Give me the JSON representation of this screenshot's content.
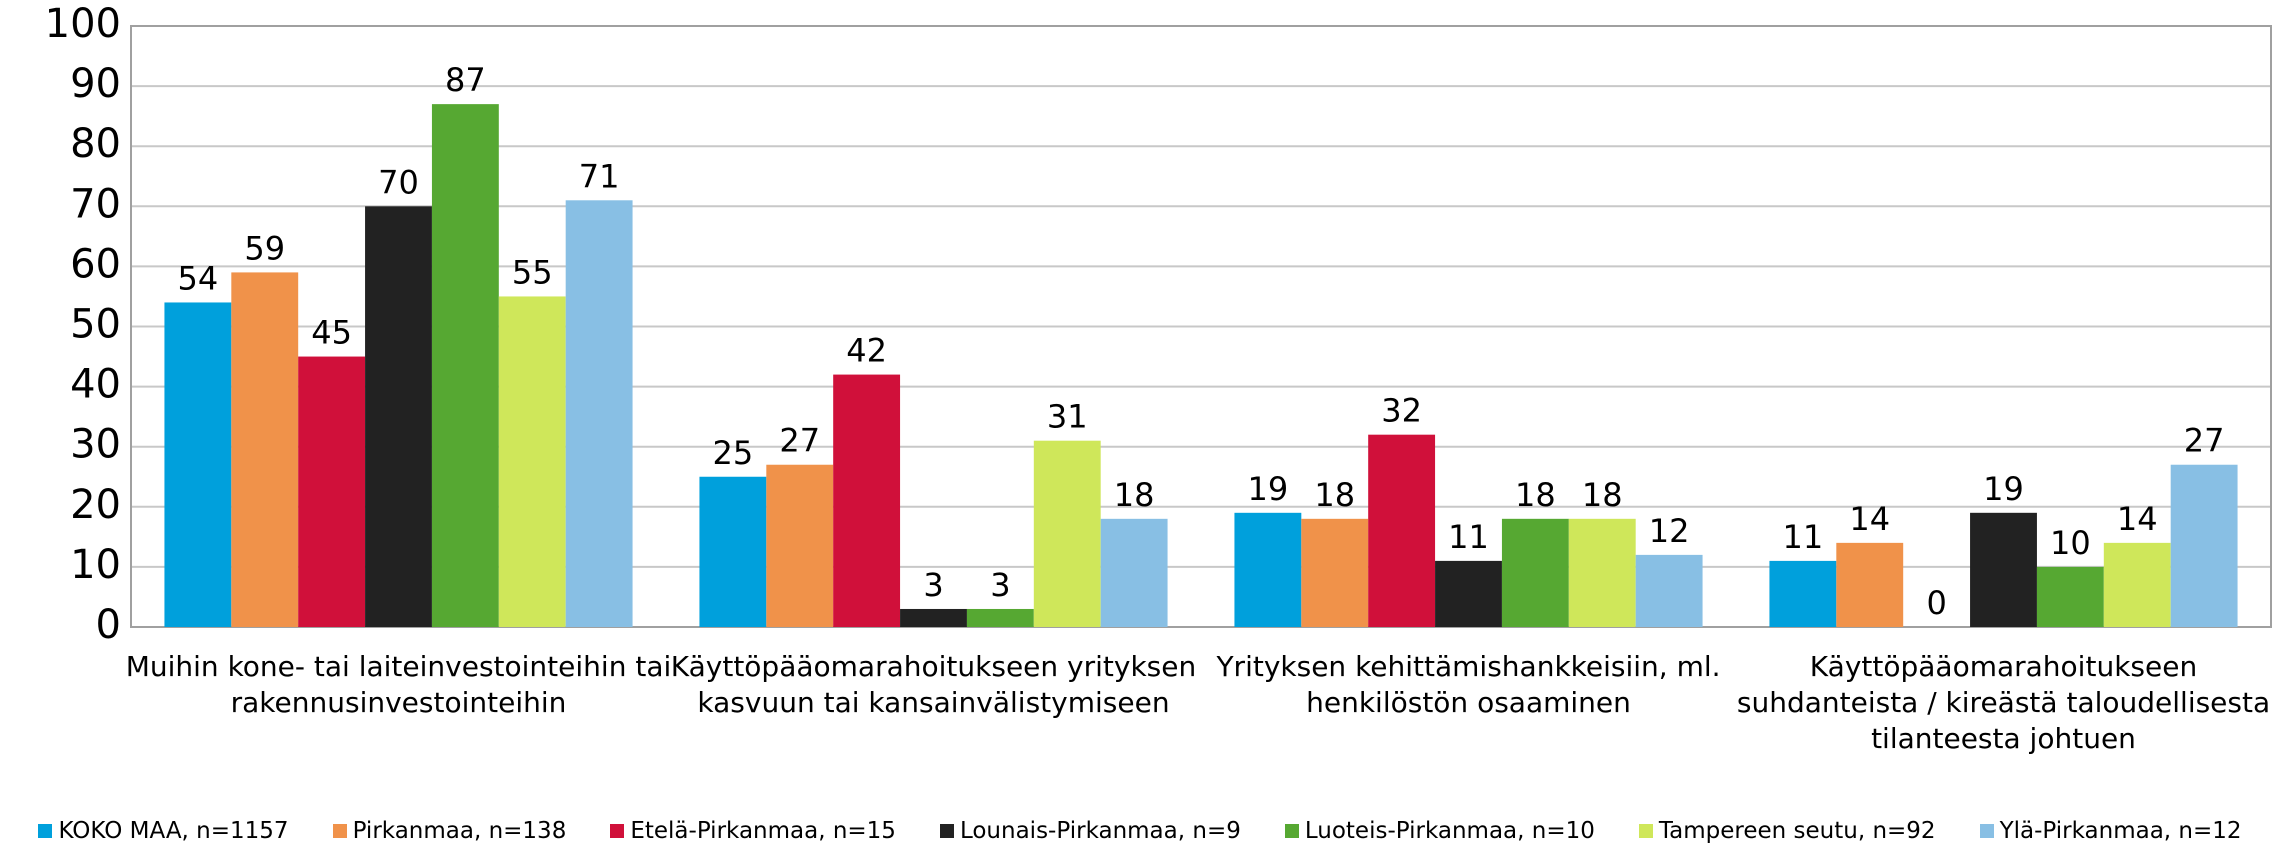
{
  "chart_data": {
    "type": "bar",
    "categories": [
      "Muihin kone- tai laiteinvestointeihin tai rakennusinvestointeihin",
      "Käyttöpääomarahoitukseen yrityksen kasvuun tai kansainvälistymiseen",
      "Yrityksen kehittämishankkeisiin, ml. henkilöstön osaaminen",
      "Käyttöpääomarahoitukseen suhdanteista / kireästä taloudellisesta tilanteesta johtuen"
    ],
    "series": [
      {
        "name": "KOKO MAA, n=1157",
        "color": "#00a0dc",
        "values": [
          54,
          25,
          19,
          11
        ]
      },
      {
        "name": "Pirkanmaa, n=138",
        "color": "#f0924a",
        "values": [
          59,
          27,
          18,
          14
        ]
      },
      {
        "name": "Etelä-Pirkanmaa, n=15",
        "color": "#d0103a",
        "values": [
          45,
          42,
          32,
          0
        ]
      },
      {
        "name": "Lounais-Pirkanmaa, n=9",
        "color": "#222222",
        "values": [
          70,
          3,
          11,
          19
        ]
      },
      {
        "name": "Luoteis-Pirkanmaa, n=10",
        "color": "#56a832",
        "values": [
          87,
          3,
          18,
          10
        ]
      },
      {
        "name": "Tampereen seutu, n=92",
        "color": "#cfe75a",
        "values": [
          55,
          31,
          18,
          14
        ]
      },
      {
        "name": "Ylä-Pirkanmaa, n=12",
        "color": "#88bfe4",
        "values": [
          71,
          18,
          12,
          27
        ]
      }
    ],
    "ylim": [
      0,
      100
    ],
    "yticks": [
      0,
      10,
      20,
      30,
      40,
      50,
      60,
      70,
      80,
      90,
      100
    ],
    "grid": true
  }
}
